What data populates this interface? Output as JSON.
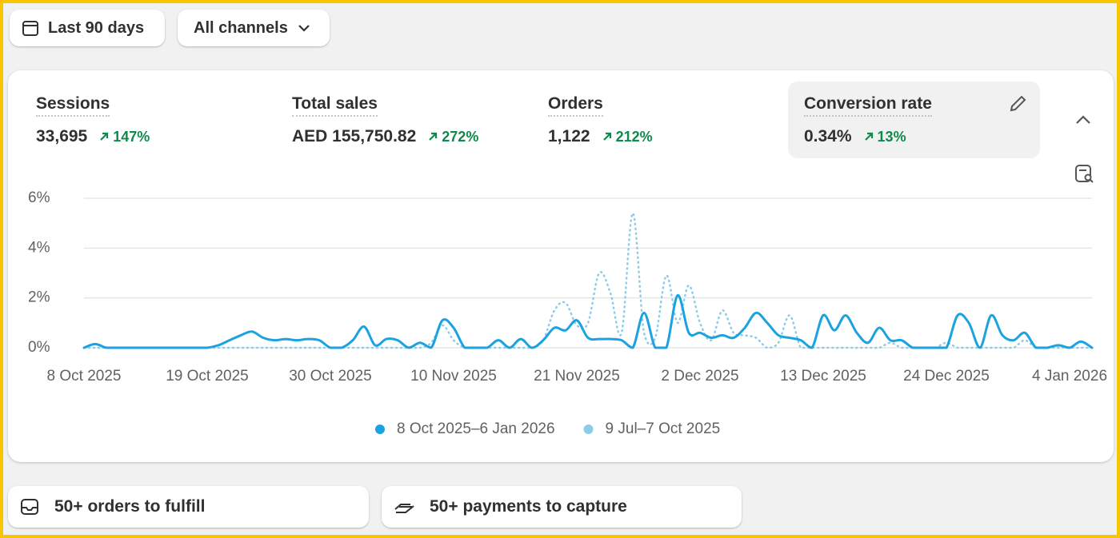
{
  "filters": {
    "date_range": "Last 90 days",
    "channel": "All channels"
  },
  "metrics": [
    {
      "label": "Sessions",
      "value": "33,695",
      "change": "147%"
    },
    {
      "label": "Total sales",
      "value": "AED 155,750.82",
      "change": "272%"
    },
    {
      "label": "Orders",
      "value": "1,122",
      "change": "212%"
    },
    {
      "label": "Conversion rate",
      "value": "0.34%",
      "change": "13%"
    }
  ],
  "chart_data": {
    "type": "line",
    "categories": [
      "8 Oct 2025",
      null,
      null,
      null,
      null,
      null,
      null,
      null,
      null,
      null,
      null,
      "19 Oct 2025",
      null,
      null,
      null,
      null,
      null,
      null,
      null,
      null,
      null,
      null,
      "30 Oct 2025",
      null,
      null,
      null,
      null,
      null,
      null,
      null,
      null,
      null,
      null,
      "10 Nov 2025",
      null,
      null,
      null,
      null,
      null,
      null,
      null,
      null,
      null,
      null,
      "21 Nov 2025",
      null,
      null,
      null,
      null,
      null,
      null,
      null,
      null,
      null,
      null,
      "2 Dec 2025",
      null,
      null,
      null,
      null,
      null,
      null,
      null,
      null,
      null,
      null,
      "13 Dec 2025",
      null,
      null,
      null,
      null,
      null,
      null,
      null,
      null,
      null,
      null,
      "24 Dec 2025",
      null,
      null,
      null,
      null,
      null,
      null,
      null,
      null,
      null,
      null,
      "4 Jan 2026",
      null,
      null
    ],
    "series": [
      {
        "name": "8 Oct 2025–6 Jan 2026",
        "color": "#1aa3e0",
        "line_style": "solid",
        "values": [
          0,
          0.15,
          0,
          0,
          0,
          0,
          0,
          0,
          0,
          0,
          0,
          0,
          0.1,
          0.3,
          0.5,
          0.65,
          0.4,
          0.3,
          0.35,
          0.3,
          0.35,
          0.3,
          0,
          0,
          0.3,
          0.85,
          0.1,
          0.35,
          0.3,
          0,
          0.2,
          0,
          1.1,
          0.8,
          0,
          0,
          0,
          0.3,
          0,
          0.35,
          0,
          0.3,
          0.8,
          0.7,
          1.1,
          0.4,
          0.35,
          0.35,
          0.3,
          0,
          1.4,
          0,
          0,
          2.1,
          0.6,
          0.6,
          0.4,
          0.5,
          0.4,
          0.8,
          1.4,
          1.0,
          0.5,
          0.4,
          0.3,
          0,
          1.3,
          0.7,
          1.3,
          0.6,
          0.2,
          0.8,
          0.3,
          0.3,
          0,
          0,
          0,
          0,
          1.3,
          1.0,
          0,
          1.3,
          0.5,
          0.3,
          0.6,
          0,
          0,
          0.1,
          0,
          0.25,
          0
        ]
      },
      {
        "name": "9 Jul–7 Oct 2025",
        "color": "#8fcbe8",
        "line_style": "dotted",
        "values": [
          0,
          0,
          0,
          0,
          0,
          0,
          0,
          0,
          0,
          0,
          0,
          0,
          0,
          0,
          0,
          0,
          0,
          0,
          0,
          0,
          0,
          0,
          0,
          0,
          0,
          0,
          0,
          0,
          0,
          0,
          0,
          0.2,
          0.9,
          0.3,
          0,
          0,
          0,
          0,
          0,
          0,
          0,
          0.3,
          1.5,
          1.8,
          0.9,
          1.0,
          3.0,
          2.2,
          0.6,
          5.4,
          0.6,
          0.4,
          2.9,
          1.0,
          2.5,
          1.0,
          0.3,
          1.5,
          0.6,
          0.5,
          0.4,
          0,
          0.2,
          1.3,
          0,
          0,
          0,
          0,
          0,
          0,
          0,
          0,
          0.2,
          0,
          0,
          0,
          0,
          0.2,
          0,
          0,
          0,
          0,
          0,
          0,
          0.3,
          0,
          0,
          0,
          0,
          0,
          0
        ]
      }
    ],
    "ylim": [
      0,
      6
    ],
    "yticks": [
      {
        "value": 0,
        "label": "0%"
      },
      {
        "value": 2,
        "label": "2%"
      },
      {
        "value": 4,
        "label": "4%"
      },
      {
        "value": 6,
        "label": "6%"
      }
    ],
    "grid": true
  },
  "tasks": [
    {
      "label": "50+ orders to fulfill"
    },
    {
      "label": "50+ payments to capture"
    }
  ]
}
